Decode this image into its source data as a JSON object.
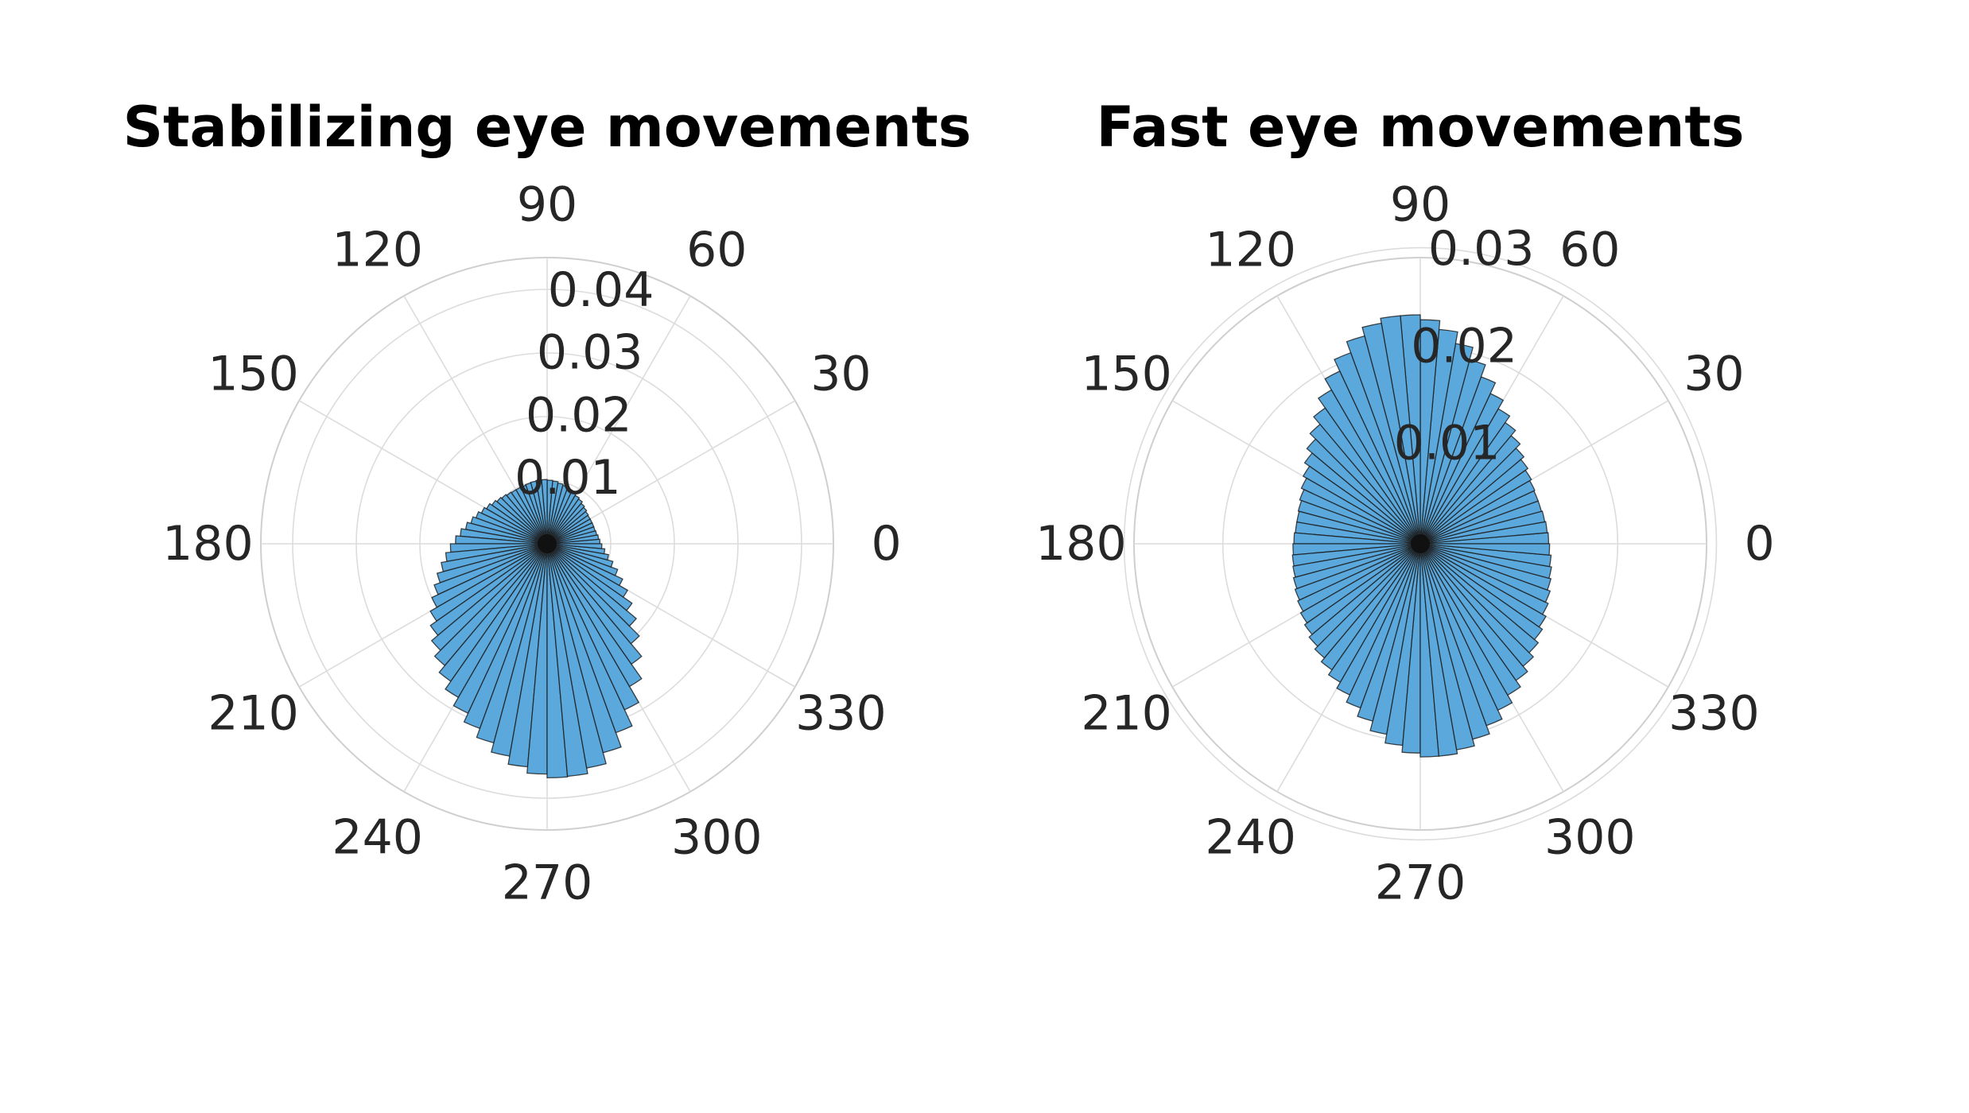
{
  "figure": {
    "background": "#ffffff"
  },
  "chart_data": [
    {
      "type": "polar-histogram",
      "title": "Stabilizing eye movements",
      "theta_ticks": [
        "0",
        "30",
        "60",
        "90",
        "120",
        "150",
        "180",
        "210",
        "240",
        "270",
        "300",
        "330"
      ],
      "radial_ticks": [
        0.01,
        0.02,
        0.03,
        0.04
      ],
      "radial_tick_labels": [
        "0.01",
        "0.02",
        "0.03",
        "0.04"
      ],
      "rlim": [
        0,
        0.045
      ],
      "grid": true,
      "bar_color": "#5ba8dc",
      "edge_color": "#1a1a1a",
      "bins": 72,
      "bin_width_deg": 5,
      "bin_centers_deg": [
        2.5,
        7.5,
        12.5,
        17.5,
        22.5,
        27.5,
        32.5,
        37.5,
        42.5,
        47.5,
        52.5,
        57.5,
        62.5,
        67.5,
        72.5,
        77.5,
        82.5,
        87.5,
        92.5,
        97.5,
        102.5,
        107.5,
        112.5,
        117.5,
        122.5,
        127.5,
        132.5,
        137.5,
        142.5,
        147.5,
        152.5,
        157.5,
        162.5,
        167.5,
        172.5,
        177.5,
        182.5,
        187.5,
        192.5,
        197.5,
        202.5,
        207.5,
        212.5,
        217.5,
        222.5,
        227.5,
        232.5,
        237.5,
        242.5,
        247.5,
        252.5,
        257.5,
        262.5,
        267.5,
        272.5,
        277.5,
        282.5,
        287.5,
        292.5,
        297.5,
        302.5,
        307.5,
        312.5,
        317.5,
        322.5,
        327.5,
        332.5,
        337.5,
        342.5,
        347.5,
        352.5,
        357.5
      ],
      "values": [
        0.0083,
        0.0081,
        0.0079,
        0.0078,
        0.0078,
        0.0078,
        0.0078,
        0.0079,
        0.0081,
        0.0083,
        0.0086,
        0.0088,
        0.009,
        0.0093,
        0.0095,
        0.0097,
        0.0099,
        0.01,
        0.0101,
        0.0101,
        0.01,
        0.0099,
        0.0098,
        0.0098,
        0.0098,
        0.0099,
        0.0101,
        0.0103,
        0.0106,
        0.011,
        0.0114,
        0.0119,
        0.0124,
        0.013,
        0.0137,
        0.0144,
        0.0152,
        0.016,
        0.0169,
        0.0179,
        0.0189,
        0.02,
        0.0212,
        0.0224,
        0.0237,
        0.025,
        0.0264,
        0.0279,
        0.0294,
        0.0309,
        0.0324,
        0.0339,
        0.0352,
        0.0362,
        0.0368,
        0.0367,
        0.0358,
        0.034,
        0.0316,
        0.0288,
        0.0259,
        0.0231,
        0.0205,
        0.0183,
        0.0163,
        0.0146,
        0.0131,
        0.0118,
        0.0107,
        0.0098,
        0.0091,
        0.0086
      ]
    },
    {
      "type": "polar-histogram",
      "title": "Fast eye movements",
      "theta_ticks": [
        "0",
        "30",
        "60",
        "90",
        "120",
        "150",
        "180",
        "210",
        "240",
        "270",
        "300",
        "330"
      ],
      "radial_ticks": [
        0.01,
        0.02,
        0.03
      ],
      "radial_tick_labels": [
        "0.01",
        "0.02",
        "0.03"
      ],
      "rlim": [
        0,
        0.029
      ],
      "grid": true,
      "bar_color": "#5ba8dc",
      "edge_color": "#1a1a1a",
      "bins": 72,
      "bin_width_deg": 5,
      "bin_centers_deg": [
        2.5,
        7.5,
        12.5,
        17.5,
        22.5,
        27.5,
        32.5,
        37.5,
        42.5,
        47.5,
        52.5,
        57.5,
        62.5,
        67.5,
        72.5,
        77.5,
        82.5,
        87.5,
        92.5,
        97.5,
        102.5,
        107.5,
        112.5,
        117.5,
        122.5,
        127.5,
        132.5,
        137.5,
        142.5,
        147.5,
        152.5,
        157.5,
        162.5,
        167.5,
        172.5,
        177.5,
        182.5,
        187.5,
        192.5,
        197.5,
        202.5,
        207.5,
        212.5,
        217.5,
        222.5,
        227.5,
        232.5,
        237.5,
        242.5,
        247.5,
        252.5,
        257.5,
        262.5,
        267.5,
        272.5,
        277.5,
        282.5,
        287.5,
        292.5,
        297.5,
        302.5,
        307.5,
        312.5,
        317.5,
        322.5,
        327.5,
        332.5,
        337.5,
        342.5,
        347.5,
        352.5,
        357.5
      ],
      "values": [
        0.013,
        0.0129,
        0.0128,
        0.0127,
        0.0127,
        0.0128,
        0.013,
        0.0133,
        0.0137,
        0.0143,
        0.015,
        0.0158,
        0.0168,
        0.018,
        0.0193,
        0.0206,
        0.0218,
        0.0227,
        0.0232,
        0.0232,
        0.0227,
        0.0218,
        0.0206,
        0.0193,
        0.018,
        0.0168,
        0.0158,
        0.015,
        0.0143,
        0.0137,
        0.0133,
        0.013,
        0.0128,
        0.0127,
        0.0127,
        0.0128,
        0.0129,
        0.013,
        0.0131,
        0.0133,
        0.0135,
        0.0137,
        0.014,
        0.0143,
        0.0147,
        0.0151,
        0.0156,
        0.0162,
        0.0169,
        0.0177,
        0.0186,
        0.0196,
        0.0205,
        0.0212,
        0.0216,
        0.0216,
        0.0212,
        0.0205,
        0.0196,
        0.0186,
        0.0177,
        0.0169,
        0.0162,
        0.0156,
        0.0151,
        0.0147,
        0.0143,
        0.014,
        0.0137,
        0.0135,
        0.0133,
        0.0131
      ]
    }
  ]
}
